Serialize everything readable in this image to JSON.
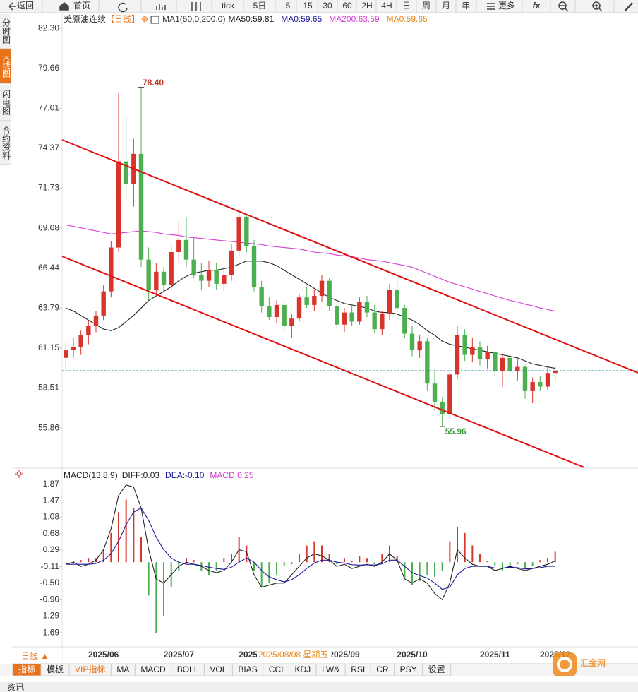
{
  "toolbar": [
    "返回",
    "首页",
    "tick",
    "5日",
    "5",
    "15",
    "30",
    "60",
    "2H",
    "4H",
    "日",
    "周",
    "月",
    "年",
    "更多",
    "fx"
  ],
  "side_tabs": [
    "分时图",
    "K线图",
    "闪电图",
    "合约资料"
  ],
  "bottom_bar": {
    "period": "日线 ▲",
    "tabs": [
      "指标",
      "模板",
      "VIP指标",
      "MA",
      "MACD",
      "BOLL",
      "VOL",
      "BIAS",
      "CCI",
      "KDJ",
      "LW&",
      "RSI",
      "CR",
      "PSY",
      "设置"
    ]
  },
  "footer": "资讯",
  "logo": "汇金网",
  "chart_data": [
    {
      "type": "candlestick",
      "title": "美原油连续",
      "period": "【日线】",
      "add_icon": "⊕",
      "legend": [
        {
          "label": "MA1(50,0,200,0)",
          "color": "#333333"
        },
        {
          "label": "MA50:59.81",
          "color": "#222222"
        },
        {
          "label": "MA0:59.65",
          "color": "#1b1b9a"
        },
        {
          "label": "MA200:63.59",
          "color": "#d63fd6"
        },
        {
          "label": "MA0:59.65",
          "color": "#e8891c"
        }
      ],
      "up_color": "#d9342b",
      "down_color": "#4caf50",
      "categories": [
        null,
        null,
        null,
        null,
        null,
        "2025/06",
        null,
        null,
        null,
        null,
        null,
        null,
        null,
        null,
        null,
        "2025/07",
        null,
        null,
        null,
        null,
        null,
        null,
        null,
        null,
        null,
        "2025/08",
        null,
        null,
        null,
        null,
        null,
        null,
        null,
        null,
        null,
        null,
        null,
        "2025/09",
        null,
        null,
        null,
        null,
        null,
        null,
        null,
        null,
        "2025/10",
        null,
        null,
        null,
        null,
        null,
        null,
        null,
        null,
        null,
        null,
        "2025/11",
        null,
        null,
        null,
        null,
        null,
        null,
        null,
        "2025/12"
      ],
      "open": [
        60.5,
        61.0,
        61.2,
        62.0,
        62.6,
        63.3,
        64.9,
        67.8,
        73.5,
        72.0,
        74.0,
        67.0,
        65.0,
        66.2,
        65.3,
        67.5,
        68.3,
        67.0,
        66.0,
        65.6,
        66.3,
        65.4,
        66.0,
        67.6,
        69.8,
        67.9,
        65.2,
        63.9,
        63.2,
        64.0,
        62.6,
        63.1,
        64.5,
        64.0,
        64.6,
        65.6,
        63.9,
        62.7,
        63.5,
        62.9,
        64.2,
        63.5,
        62.4,
        63.4,
        65.0,
        63.8,
        62.1,
        61.0,
        61.6,
        58.8,
        57.6,
        56.8,
        59.4,
        62.0,
        60.7,
        61.2,
        60.4,
        60.9,
        59.6,
        60.5,
        59.6,
        59.9,
        58.3,
        58.9,
        58.6,
        59.5
      ],
      "high": [
        61.5,
        61.8,
        62.3,
        63.0,
        63.6,
        65.3,
        68.2,
        78.0,
        76.5,
        75.0,
        78.4,
        67.8,
        66.8,
        66.5,
        68.0,
        69.5,
        69.8,
        68.5,
        66.8,
        66.9,
        66.8,
        66.5,
        68.0,
        70.1,
        70.0,
        68.3,
        65.6,
        64.5,
        64.3,
        64.2,
        63.4,
        64.7,
        65.2,
        65.0,
        66.0,
        65.8,
        64.2,
        63.8,
        64.0,
        64.5,
        64.6,
        64.0,
        63.6,
        65.4,
        66.0,
        64.0,
        62.6,
        62.0,
        61.8,
        59.6,
        57.9,
        59.8,
        62.6,
        62.4,
        61.8,
        61.6,
        61.3,
        61.0,
        60.8,
        60.7,
        60.4,
        60.0,
        59.2,
        59.3,
        59.9,
        60.0
      ],
      "low": [
        59.8,
        60.5,
        60.7,
        61.4,
        62.2,
        63.0,
        64.5,
        67.5,
        71.0,
        70.5,
        66.5,
        64.3,
        64.6,
        64.8,
        65.0,
        66.8,
        66.5,
        65.8,
        65.0,
        65.2,
        65.0,
        64.9,
        65.6,
        67.2,
        67.5,
        64.9,
        63.5,
        63.0,
        62.8,
        62.3,
        61.8,
        62.9,
        63.8,
        63.6,
        64.2,
        63.6,
        62.4,
        62.2,
        62.6,
        62.7,
        63.2,
        62.2,
        62.0,
        63.0,
        63.5,
        61.8,
        60.6,
        60.5,
        58.3,
        57.0,
        55.96,
        56.5,
        59.1,
        60.3,
        60.2,
        60.0,
        59.8,
        59.3,
        58.6,
        59.3,
        59.0,
        57.8,
        57.5,
        58.3,
        58.4,
        58.9
      ],
      "close": [
        61.0,
        61.2,
        62.0,
        62.6,
        63.3,
        64.9,
        67.8,
        73.5,
        72.0,
        74.0,
        67.0,
        65.0,
        66.2,
        65.3,
        67.5,
        68.3,
        67.0,
        66.0,
        65.6,
        66.3,
        65.4,
        66.0,
        67.6,
        69.8,
        67.9,
        65.2,
        63.9,
        63.2,
        64.0,
        62.6,
        63.1,
        64.5,
        64.0,
        64.6,
        65.6,
        63.9,
        62.7,
        63.5,
        62.9,
        64.2,
        63.5,
        62.4,
        63.4,
        65.0,
        63.8,
        62.1,
        61.0,
        61.6,
        58.8,
        57.6,
        56.8,
        59.4,
        62.0,
        60.7,
        61.2,
        60.4,
        60.9,
        59.6,
        60.5,
        59.6,
        59.9,
        58.3,
        58.9,
        58.6,
        59.5,
        59.65
      ],
      "series": [
        {
          "color": "#222222",
          "values": [
            63.8,
            63.6,
            63.3,
            63.0,
            62.7,
            62.4,
            62.3,
            62.5,
            62.9,
            63.3,
            63.8,
            64.3,
            64.6,
            64.9,
            65.2,
            65.6,
            65.9,
            66.1,
            66.2,
            66.3,
            66.3,
            66.4,
            66.5,
            66.7,
            66.9,
            66.9,
            66.9,
            66.8,
            66.6,
            66.3,
            66.0,
            65.7,
            65.4,
            65.1,
            64.8,
            64.5,
            64.3,
            64.1,
            64.0,
            63.9,
            63.8,
            63.6,
            63.5,
            63.5,
            63.4,
            63.2,
            63.0,
            62.7,
            62.3,
            62.0,
            61.6,
            61.4,
            61.3,
            61.2,
            61.1,
            61.0,
            60.9,
            60.8,
            60.7,
            60.6,
            60.5,
            60.3,
            60.1,
            60.0,
            59.9,
            59.81
          ]
        },
        {
          "color": "#d63fd6",
          "values": [
            69.3,
            69.2,
            69.1,
            69.0,
            68.9,
            68.8,
            68.7,
            68.75,
            68.8,
            68.85,
            68.9,
            68.85,
            68.8,
            68.7,
            68.65,
            68.6,
            68.5,
            68.45,
            68.4,
            68.35,
            68.3,
            68.25,
            68.2,
            68.15,
            68.1,
            68.05,
            68.0,
            67.9,
            67.85,
            67.8,
            67.75,
            67.7,
            67.6,
            67.5,
            67.45,
            67.4,
            67.3,
            67.25,
            67.2,
            67.1,
            67.0,
            66.95,
            66.9,
            66.8,
            66.7,
            66.6,
            66.5,
            66.3,
            66.1,
            65.9,
            65.7,
            65.5,
            65.35,
            65.2,
            65.05,
            64.9,
            64.75,
            64.6,
            64.45,
            64.3,
            64.2,
            64.05,
            63.95,
            63.8,
            63.7,
            63.59
          ]
        }
      ],
      "max_label": {
        "value": 78.4,
        "label": "78.40"
      },
      "min_label": {
        "value": 55.96,
        "label": "55.96"
      },
      "cursor_label": "2025/08/08 星期五",
      "ylim": [
        53.25,
        83.15
      ],
      "yticks": [
        {
          "value": 82.3,
          "label": "82.30"
        },
        79.66,
        77.01,
        74.37,
        71.73,
        69.08,
        66.44,
        63.79,
        61.15,
        58.51,
        55.86
      ]
    },
    {
      "type": "macd",
      "title": "MACD(13,8,9)",
      "legend": [
        {
          "label": "DIFF:0.03",
          "color": "#222222"
        },
        {
          "label": "DEA:-0.10",
          "color": "#1b1b9a"
        },
        {
          "label": "MACD:0.25",
          "color": "#cc33cc"
        }
      ],
      "up_color": "#d9342b",
      "down_color": "#4caf50",
      "histogram": [
        0,
        0.02,
        0.05,
        0.1,
        0.1,
        0.3,
        0.7,
        1.2,
        1.5,
        1.3,
        0.6,
        -0.8,
        -1.7,
        -1.3,
        -0.6,
        -0.2,
        0.1,
        0.05,
        -0.2,
        -0.3,
        -0.2,
        0.1,
        0.2,
        0.6,
        0.4,
        -0.2,
        -0.6,
        -0.5,
        -0.3,
        -0.1,
        -0.05,
        0.2,
        0.4,
        0.5,
        0.4,
        0.2,
        -0.05,
        0.1,
        0.02,
        0.15,
        0.1,
        -0.05,
        0.2,
        0.4,
        0.15,
        -0.4,
        -0.55,
        -0.45,
        -0.3,
        -0.35,
        -0.2,
        0.5,
        0.85,
        0.7,
        0.4,
        0.2,
        0.02,
        -0.1,
        -0.2,
        -0.15,
        -0.05,
        -0.15,
        -0.1,
        0.05,
        0.1,
        0.25
      ],
      "series": [
        {
          "color": "#222222",
          "values": [
            -0.05,
            0,
            -0.1,
            -0.05,
            0.05,
            0.3,
            0.8,
            1.6,
            1.85,
            1.8,
            1.3,
            0.3,
            -0.4,
            -0.5,
            -0.3,
            -0.1,
            0.0,
            -0.05,
            -0.1,
            -0.2,
            -0.25,
            -0.2,
            0.0,
            0.3,
            0.25,
            -0.3,
            -0.6,
            -0.55,
            -0.5,
            -0.5,
            -0.3,
            -0.1,
            0.1,
            0.2,
            0.15,
            0.05,
            -0.1,
            -0.05,
            -0.15,
            -0.1,
            -0.05,
            -0.1,
            0.0,
            0.2,
            0.05,
            -0.4,
            -0.5,
            -0.4,
            -0.5,
            -0.75,
            -0.9,
            -0.5,
            0.3,
            0.1,
            -0.05,
            -0.1,
            -0.1,
            -0.2,
            -0.15,
            -0.1,
            -0.15,
            -0.2,
            -0.15,
            -0.1,
            -0.05,
            0.03
          ]
        },
        {
          "color": "#1b1b9a",
          "values": [
            -0.05,
            -0.05,
            -0.05,
            -0.05,
            -0.03,
            0.05,
            0.2,
            0.5,
            0.9,
            1.2,
            1.3,
            1.0,
            0.6,
            0.3,
            0.1,
            0.0,
            -0.05,
            -0.05,
            -0.08,
            -0.12,
            -0.15,
            -0.17,
            -0.12,
            0.0,
            0.1,
            0.0,
            -0.2,
            -0.35,
            -0.42,
            -0.47,
            -0.42,
            -0.3,
            -0.15,
            -0.02,
            0.05,
            0.05,
            0.0,
            -0.02,
            -0.06,
            -0.07,
            -0.06,
            -0.07,
            -0.04,
            0.05,
            0.05,
            -0.1,
            -0.25,
            -0.32,
            -0.38,
            -0.5,
            -0.65,
            -0.6,
            -0.3,
            -0.15,
            -0.1,
            -0.1,
            -0.1,
            -0.14,
            -0.14,
            -0.12,
            -0.13,
            -0.16,
            -0.15,
            -0.13,
            -0.1,
            -0.1
          ]
        }
      ],
      "ylim": [
        -2.01,
        2.22
      ],
      "yticks": [
        1.87,
        1.47,
        1.08,
        0.68,
        0.29,
        -0.11,
        {
          "value": -0.5,
          "label": "-0.50"
        },
        {
          "value": -0.9,
          "label": "-0.90"
        },
        -1.29,
        -1.69
      ]
    }
  ]
}
